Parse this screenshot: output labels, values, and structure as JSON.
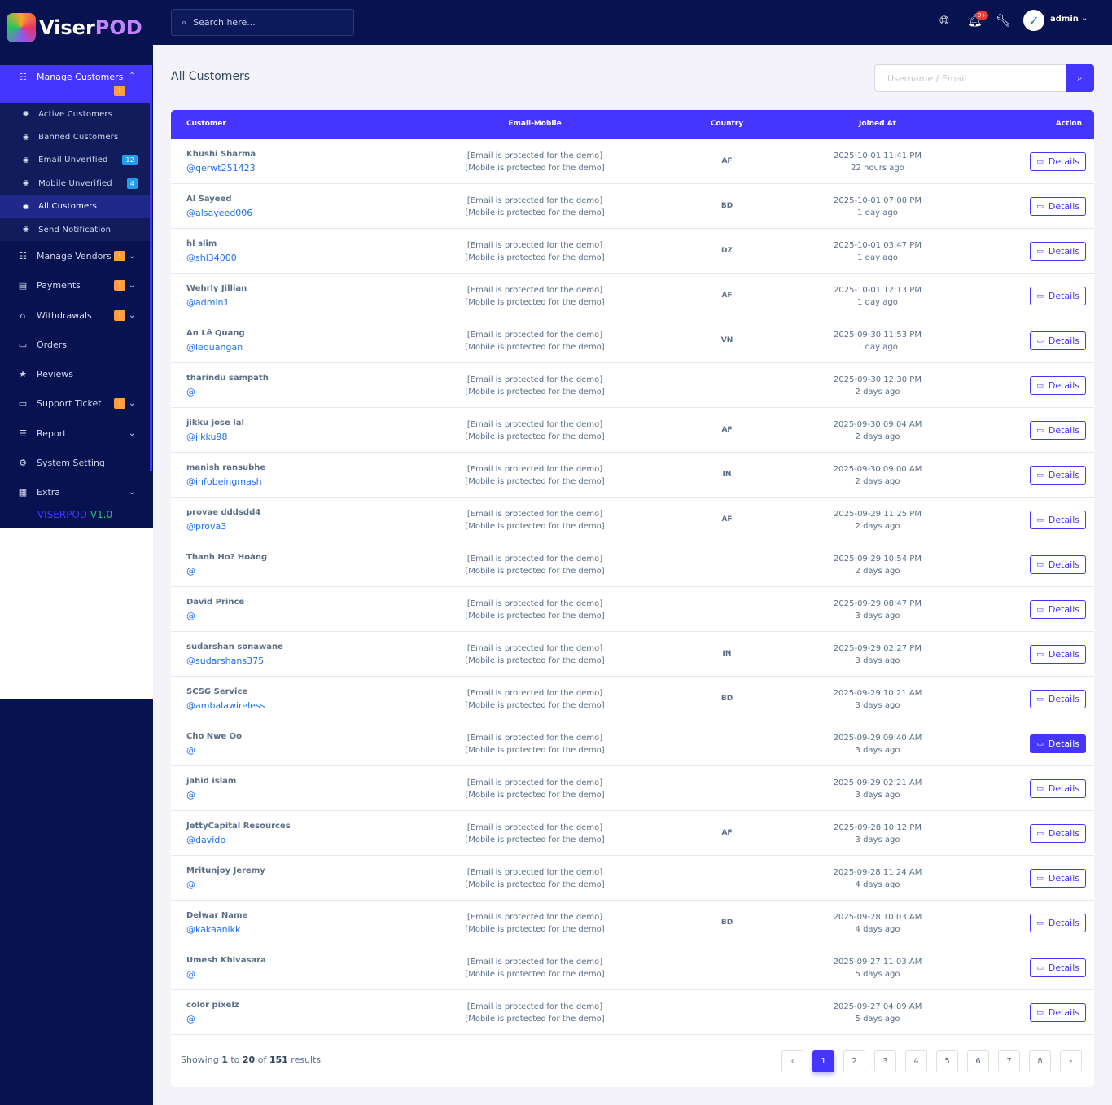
{
  "brand": {
    "name_a": "Viser",
    "name_b": "POD",
    "version_a": "VISERPOD",
    "version_b": "V1.0"
  },
  "colors": {
    "accent": "#4634ff",
    "sidebar": "#071251",
    "warning": "#ff9f43",
    "info": "#1e9ff2",
    "link": "#1e6ff2"
  },
  "topbar": {
    "search_placeholder": "Search here...",
    "notification_count": "9+",
    "user": "admin"
  },
  "sidebar": {
    "active": {
      "label": "Manage Customers",
      "icon": "users-icon",
      "warn": "!"
    },
    "sub": [
      {
        "label": "Active Customers"
      },
      {
        "label": "Banned Customers"
      },
      {
        "label": "Email Unverified",
        "count": "12"
      },
      {
        "label": "Mobile Unverified",
        "count": "4"
      },
      {
        "label": "All Customers",
        "active": true
      },
      {
        "label": "Send Notification"
      }
    ],
    "items": [
      {
        "label": "Manage Vendors",
        "icon": "users-icon",
        "glyph": "☷",
        "warn": "!",
        "chev": true
      },
      {
        "label": "Payments",
        "icon": "invoice-icon",
        "glyph": "▤",
        "warn": "!",
        "chev": true
      },
      {
        "label": "Withdrawals",
        "icon": "bank-icon",
        "glyph": "⌂",
        "warn": "!",
        "chev": true
      },
      {
        "label": "Orders",
        "icon": "money-icon",
        "glyph": "▭",
        "chev": false
      },
      {
        "label": "Reviews",
        "icon": "star-icon",
        "glyph": "★",
        "chev": false
      },
      {
        "label": "Support Ticket",
        "icon": "ticket-icon",
        "glyph": "▭",
        "warn": "!",
        "chev": true
      },
      {
        "label": "Report",
        "icon": "list-icon",
        "glyph": "☰",
        "chev": true
      },
      {
        "label": "System Setting",
        "icon": "gear-icon",
        "glyph": "⚙",
        "chev": false
      },
      {
        "label": "Extra",
        "icon": "table-icon",
        "glyph": "▦",
        "chev": true
      }
    ]
  },
  "page": {
    "title": "All Customers",
    "search_placeholder": "Username / Email"
  },
  "table": {
    "headers": {
      "customer": "Customer",
      "email": "Email-Mobile",
      "country": "Country",
      "joined": "Joined At",
      "action": "Action"
    },
    "action_label": "Details",
    "rows": [
      {
        "name": "Khushi Sharma",
        "user": "@qerwt251423",
        "email": "[Email is protected for the demo]",
        "mobile": "[Mobile is protected for the demo]",
        "country": "AF",
        "date": "2025-10-01 11:41 PM",
        "ago": "22 hours ago"
      },
      {
        "name": "Al Sayeed",
        "user": "@alsayeed006",
        "email": "[Email is protected for the demo]",
        "mobile": "[Mobile is protected for the demo]",
        "country": "BD",
        "date": "2025-10-01 07:00 PM",
        "ago": "1 day ago"
      },
      {
        "name": "hl slim",
        "user": "@shl34000",
        "email": "[Email is protected for the demo]",
        "mobile": "[Mobile is protected for the demo]",
        "country": "DZ",
        "date": "2025-10-01 03:47 PM",
        "ago": "1 day ago"
      },
      {
        "name": "Wehrly Jillian",
        "user": "@admin1",
        "email": "[Email is protected for the demo]",
        "mobile": "[Mobile is protected for the demo]",
        "country": "AF",
        "date": "2025-10-01 12:13 PM",
        "ago": "1 day ago"
      },
      {
        "name": "An Lê Quang",
        "user": "@lequangan",
        "email": "[Email is protected for the demo]",
        "mobile": "[Mobile is protected for the demo]",
        "country": "VN",
        "date": "2025-09-30 11:53 PM",
        "ago": "1 day ago"
      },
      {
        "name": "tharindu sampath",
        "user": "@",
        "email": "[Email is protected for the demo]",
        "mobile": "[Mobile is protected for the demo]",
        "country": "",
        "date": "2025-09-30 12:30 PM",
        "ago": "2 days ago"
      },
      {
        "name": "jikku jose lal",
        "user": "@jikku98",
        "email": "[Email is protected for the demo]",
        "mobile": "[Mobile is protected for the demo]",
        "country": "AF",
        "date": "2025-09-30 09:04 AM",
        "ago": "2 days ago"
      },
      {
        "name": "manish ransubhe",
        "user": "@infobeingmash",
        "email": "[Email is protected for the demo]",
        "mobile": "[Mobile is protected for the demo]",
        "country": "IN",
        "date": "2025-09-30 09:00 AM",
        "ago": "2 days ago"
      },
      {
        "name": "provae dddsdd4",
        "user": "@prova3",
        "email": "[Email is protected for the demo]",
        "mobile": "[Mobile is protected for the demo]",
        "country": "AF",
        "date": "2025-09-29 11:25 PM",
        "ago": "2 days ago"
      },
      {
        "name": "Thanh Ho? Hoàng",
        "user": "@",
        "email": "[Email is protected for the demo]",
        "mobile": "[Mobile is protected for the demo]",
        "country": "",
        "date": "2025-09-29 10:54 PM",
        "ago": "2 days ago"
      },
      {
        "name": "David Prince",
        "user": "@",
        "email": "[Email is protected for the demo]",
        "mobile": "[Mobile is protected for the demo]",
        "country": "",
        "date": "2025-09-29 08:47 PM",
        "ago": "3 days ago"
      },
      {
        "name": "sudarshan sonawane",
        "user": "@sudarshans375",
        "email": "[Email is protected for the demo]",
        "mobile": "[Mobile is protected for the demo]",
        "country": "IN",
        "date": "2025-09-29 02:27 PM",
        "ago": "3 days ago"
      },
      {
        "name": "SCSG Service",
        "user": "@ambalawireless",
        "email": "[Email is protected for the demo]",
        "mobile": "[Mobile is protected for the demo]",
        "country": "BD",
        "date": "2025-09-29 10:21 AM",
        "ago": "3 days ago"
      },
      {
        "name": "Cho Nwe Oo",
        "user": "@",
        "email": "[Email is protected for the demo]",
        "mobile": "[Mobile is protected for the demo]",
        "country": "",
        "date": "2025-09-29 09:40 AM",
        "ago": "3 days ago",
        "hover": true
      },
      {
        "name": "jahid islam",
        "user": "@",
        "email": "[Email is protected for the demo]",
        "mobile": "[Mobile is protected for the demo]",
        "country": "",
        "date": "2025-09-29 02:21 AM",
        "ago": "3 days ago"
      },
      {
        "name": "JettyCapital Resources",
        "user": "@davidp",
        "email": "[Email is protected for the demo]",
        "mobile": "[Mobile is protected for the demo]",
        "country": "AF",
        "date": "2025-09-28 10:12 PM",
        "ago": "3 days ago"
      },
      {
        "name": "Mritunjoy Jeremy",
        "user": "@",
        "email": "[Email is protected for the demo]",
        "mobile": "[Mobile is protected for the demo]",
        "country": "",
        "date": "2025-09-28 11:24 AM",
        "ago": "4 days ago"
      },
      {
        "name": "Delwar Name",
        "user": "@kakaanikk",
        "email": "[Email is protected for the demo]",
        "mobile": "[Mobile is protected for the demo]",
        "country": "BD",
        "date": "2025-09-28 10:03 AM",
        "ago": "4 days ago"
      },
      {
        "name": "Umesh Khivasara",
        "user": "@",
        "email": "[Email is protected for the demo]",
        "mobile": "[Mobile is protected for the demo]",
        "country": "",
        "date": "2025-09-27 11:03 AM",
        "ago": "5 days ago"
      },
      {
        "name": "color pixelz",
        "user": "@",
        "email": "[Email is protected for the demo]",
        "mobile": "[Mobile is protected for the demo]",
        "country": "",
        "date": "2025-09-27 04:09 AM",
        "ago": "5 days ago"
      }
    ]
  },
  "footer": {
    "showing": "Showing",
    "from": "1",
    "to_word": "to",
    "to": "20",
    "of_word": "of",
    "total": "151",
    "results": "results"
  },
  "pagination": {
    "prev": "‹",
    "next": "›",
    "pages": [
      "1",
      "2",
      "3",
      "4",
      "5",
      "6",
      "7",
      "8"
    ],
    "current": "1"
  }
}
